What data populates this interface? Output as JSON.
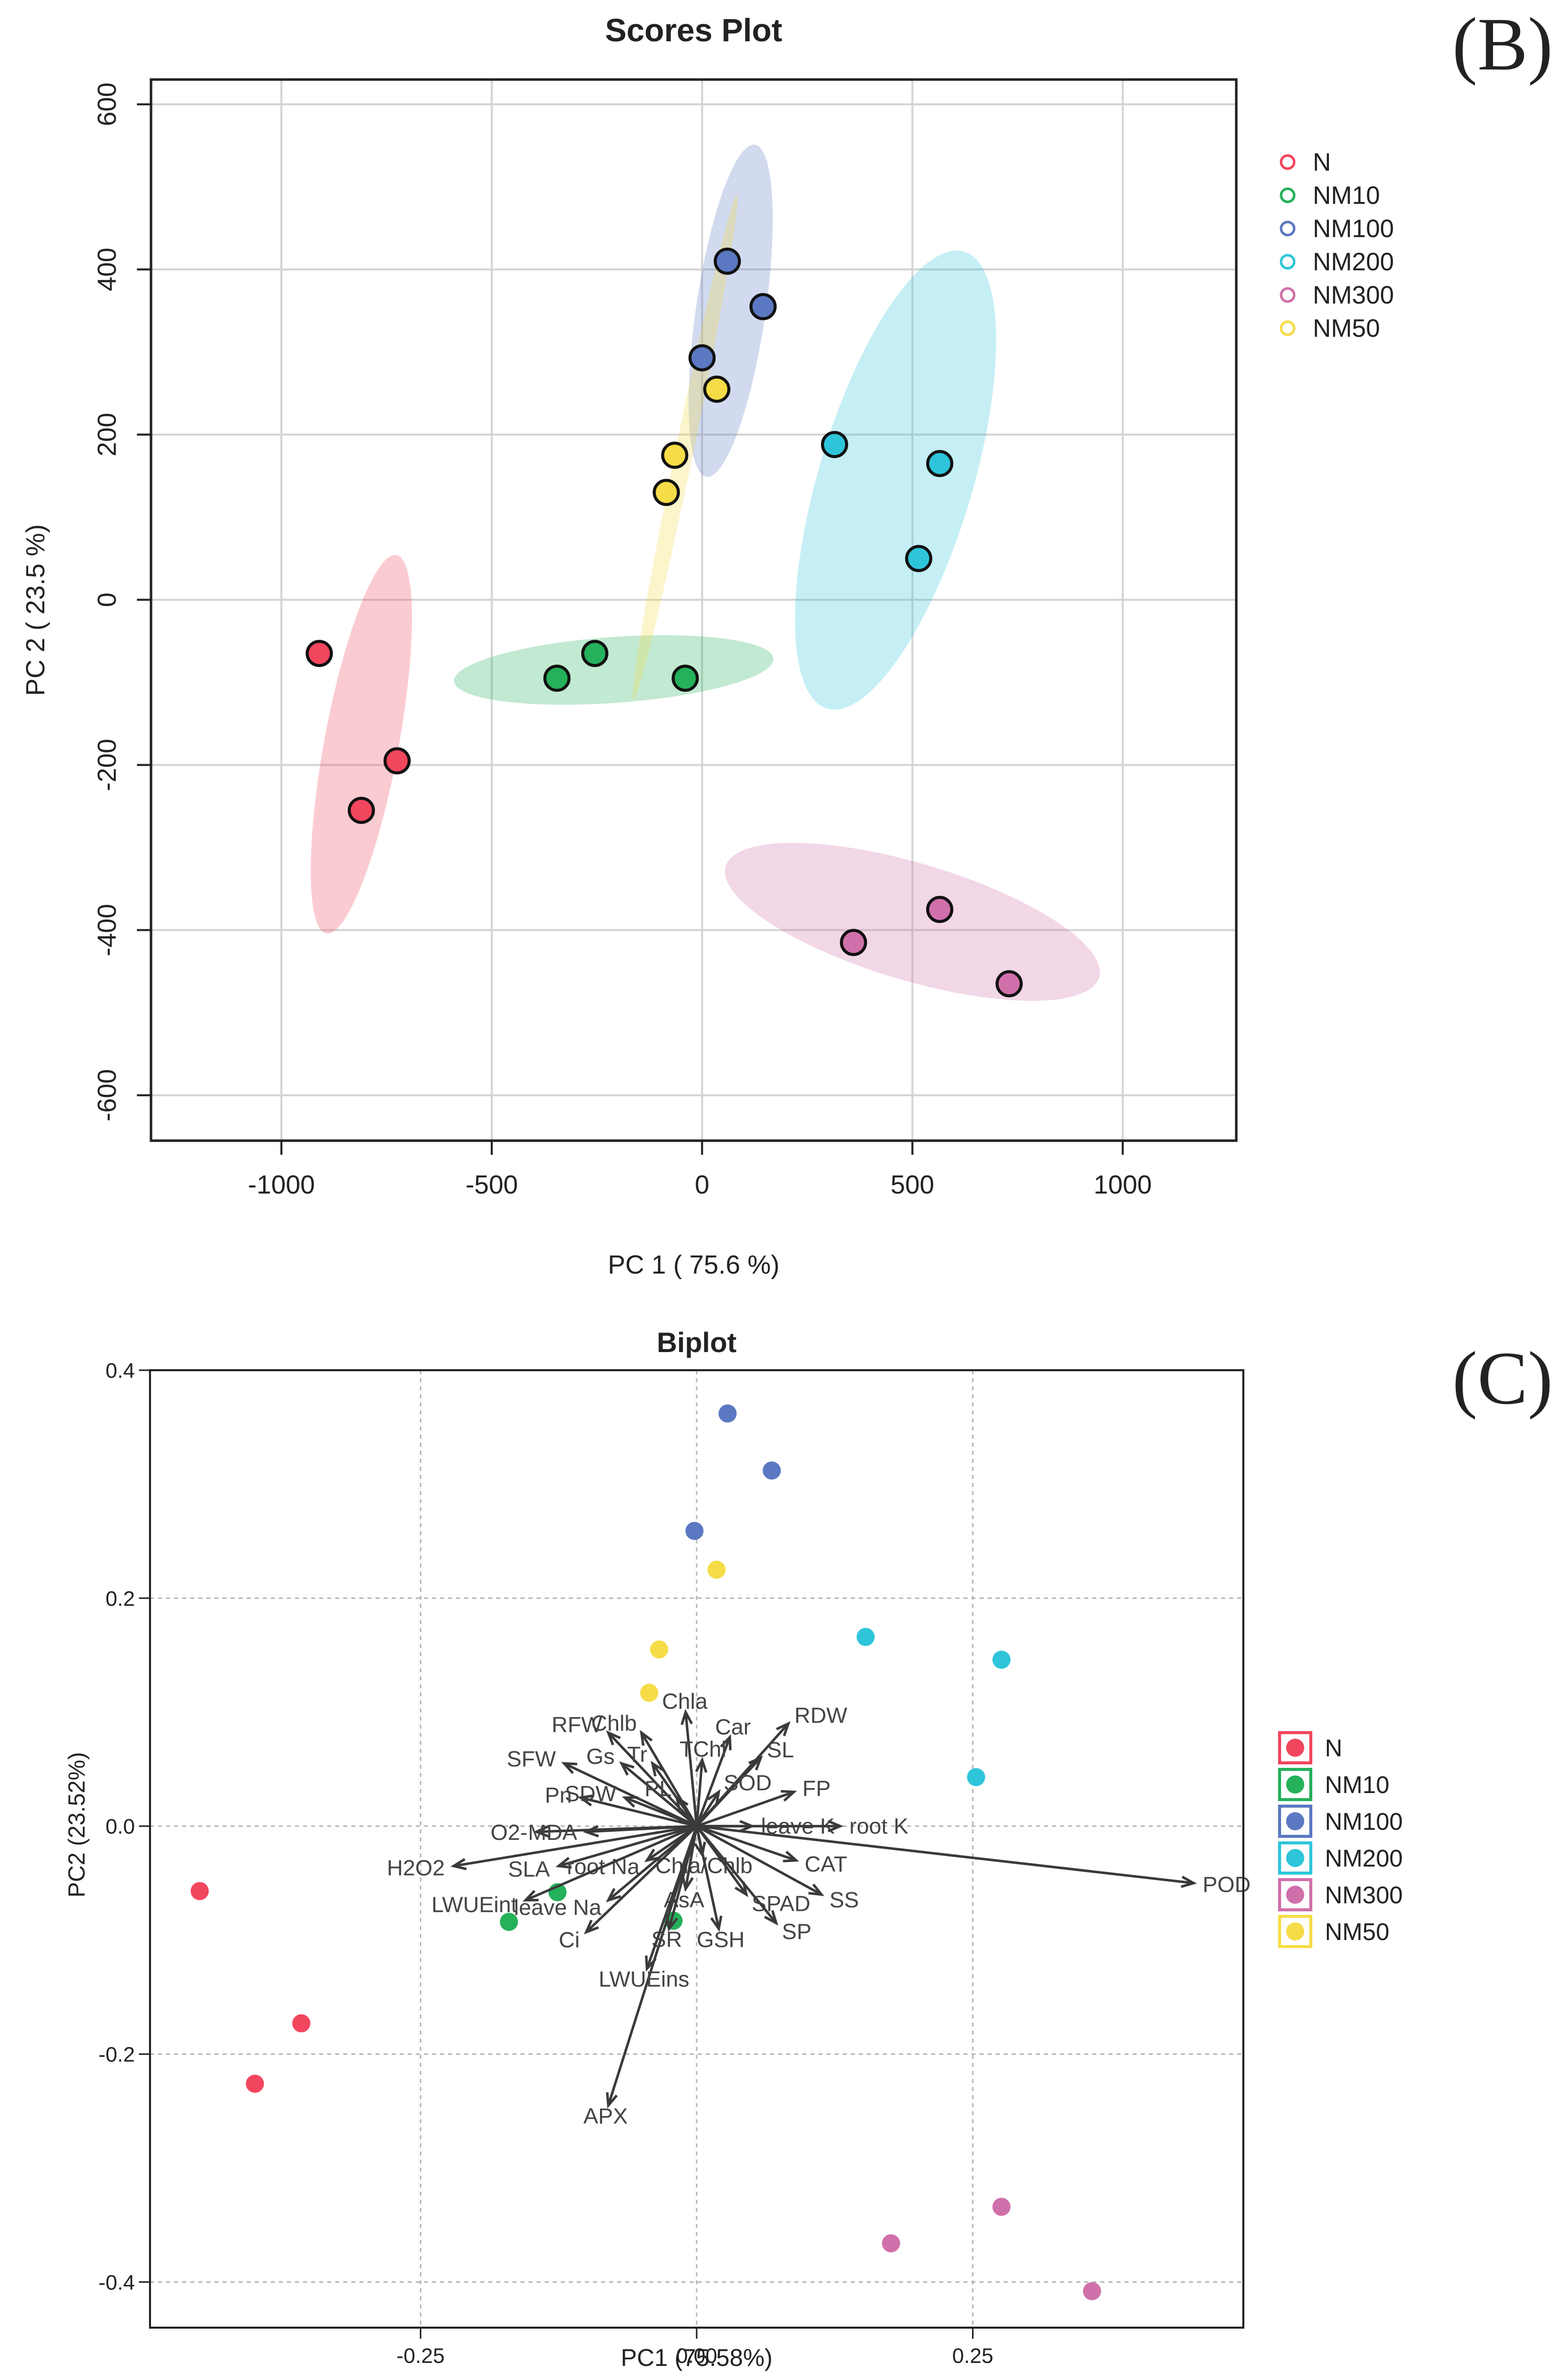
{
  "panel_labels": {
    "top": "(B)",
    "bottom": "(C)"
  },
  "colors": {
    "N": "#f2465e",
    "NM10": "#25b05a",
    "NM100": "#5b79c2",
    "NM200": "#2ec5da",
    "NM300": "#d070aa",
    "NM50": "#f6dc48"
  },
  "chart_data": [
    {
      "type": "scatter",
      "title": "Scores Plot",
      "xlabel": "PC 1 ( 75.6 %)",
      "ylabel": "PC 2 ( 23.5 %)",
      "xlim": [
        -1310,
        1270
      ],
      "ylim": [
        -655,
        630
      ],
      "xticks": [
        -1000,
        -500,
        0,
        500,
        1000
      ],
      "xtick_labels": [
        "-1000",
        "-500",
        "0",
        "500",
        "1000"
      ],
      "yticks": [
        600,
        400,
        200,
        0,
        -200,
        -400,
        -600
      ],
      "ytick_labels": [
        "600",
        "400",
        "200",
        "0",
        "-200",
        "-400",
        "-600"
      ],
      "grid": true,
      "legend": "top-right",
      "legend_entries": [
        "N",
        "NM10",
        "NM100",
        "NM200",
        "NM300",
        "NM50"
      ],
      "series": [
        {
          "name": "N",
          "points": [
            [
              -910,
              -65
            ],
            [
              -725,
              -195
            ],
            [
              -810,
              -255
            ]
          ],
          "ellipse": {
            "cx": -810,
            "cy": -175,
            "rx": 245,
            "ry": 84,
            "angle_deg": 68
          }
        },
        {
          "name": "NM10",
          "points": [
            [
              -345,
              -95
            ],
            [
              -255,
              -65
            ],
            [
              -40,
              -95
            ]
          ],
          "ellipse": {
            "cx": -210,
            "cy": -85,
            "rx": 380,
            "ry": 40,
            "angle_deg": 2
          }
        },
        {
          "name": "NM100",
          "points": [
            [
              60,
              410
            ],
            [
              145,
              355
            ],
            [
              0,
              293
            ]
          ],
          "ellipse": {
            "cx": 68,
            "cy": 350,
            "rx": 210,
            "ry": 80,
            "angle_deg": 72
          }
        },
        {
          "name": "NM200",
          "points": [
            [
              315,
              188
            ],
            [
              565,
              165
            ],
            [
              515,
              50
            ]
          ],
          "ellipse": {
            "cx": 460,
            "cy": 145,
            "rx": 330,
            "ry": 160,
            "angle_deg": 52
          }
        },
        {
          "name": "NM300",
          "points": [
            [
              360,
              -415
            ],
            [
              565,
              -375
            ],
            [
              730,
              -465
            ]
          ],
          "ellipse": {
            "cx": 500,
            "cy": -390,
            "rx": 450,
            "ry": 73,
            "angle_deg": -8
          }
        },
        {
          "name": "NM50",
          "points": [
            [
              35,
              255
            ],
            [
              -65,
              175
            ],
            [
              -85,
              130
            ]
          ],
          "ellipse": {
            "cx": -40,
            "cy": 185,
            "rx": 330,
            "ry": 20,
            "angle_deg": 68
          }
        }
      ]
    },
    {
      "type": "scatter",
      "title": "Biplot",
      "xlabel": "PC1 (75.58%)",
      "ylabel": "PC2 (23.52%)",
      "xlim": [
        -0.495,
        0.495
      ],
      "ylim": [
        -0.44,
        0.4
      ],
      "xticks": [
        -0.25,
        0,
        0.25
      ],
      "xtick_labels": [
        "-0.25",
        "0.00",
        "0.25"
      ],
      "yticks": [
        0.4,
        0.2,
        0,
        -0.2,
        -0.4
      ],
      "ytick_labels": [
        "0.4",
        "0.2",
        "0.0",
        "-0.2",
        "-0.4"
      ],
      "grid": true,
      "legend": "right",
      "legend_entries": [
        "N",
        "NM10",
        "NM100",
        "NM200",
        "NM300",
        "NM50"
      ],
      "series": [
        {
          "name": "N",
          "points": [
            [
              -0.45,
              -0.057
            ],
            [
              -0.358,
              -0.173
            ],
            [
              -0.4,
              -0.226
            ]
          ]
        },
        {
          "name": "NM10",
          "points": [
            [
              -0.17,
              -0.084
            ],
            [
              -0.126,
              -0.058
            ],
            [
              -0.021,
              -0.083
            ]
          ]
        },
        {
          "name": "NM100",
          "points": [
            [
              0.028,
              0.362
            ],
            [
              0.068,
              0.312
            ],
            [
              -0.002,
              0.259
            ]
          ]
        },
        {
          "name": "NM200",
          "points": [
            [
              0.153,
              0.166
            ],
            [
              0.276,
              0.146
            ],
            [
              0.253,
              0.043
            ]
          ]
        },
        {
          "name": "NM300",
          "points": [
            [
              0.176,
              -0.366
            ],
            [
              0.276,
              -0.334
            ],
            [
              0.358,
              -0.408
            ]
          ]
        },
        {
          "name": "NM50",
          "points": [
            [
              0.018,
              0.225
            ],
            [
              -0.034,
              0.155
            ],
            [
              -0.043,
              0.117
            ]
          ]
        }
      ],
      "loadings": [
        {
          "label": "POD",
          "x": 0.45,
          "y": -0.05
        },
        {
          "label": "APX",
          "x": -0.08,
          "y": -0.245
        },
        {
          "label": "Chla",
          "x": -0.01,
          "y": 0.1
        },
        {
          "label": "Car",
          "x": 0.03,
          "y": 0.078
        },
        {
          "label": "RDW",
          "x": 0.083,
          "y": 0.09
        },
        {
          "label": "RFW",
          "x": -0.08,
          "y": 0.082
        },
        {
          "label": "Chlb",
          "x": -0.05,
          "y": 0.082
        },
        {
          "label": "TChl",
          "x": 0.005,
          "y": 0.058
        },
        {
          "label": "SL",
          "x": 0.058,
          "y": 0.06
        },
        {
          "label": "Gs",
          "x": -0.068,
          "y": 0.055
        },
        {
          "label": "Tr",
          "x": -0.04,
          "y": 0.055
        },
        {
          "label": "SFW",
          "x": -0.12,
          "y": 0.055
        },
        {
          "label": "SOD",
          "x": 0.02,
          "y": 0.03
        },
        {
          "label": "FP",
          "x": 0.088,
          "y": 0.03
        },
        {
          "label": "Pn",
          "x": -0.105,
          "y": 0.025
        },
        {
          "label": "SDW",
          "x": -0.065,
          "y": 0.025
        },
        {
          "label": "PL",
          "x": -0.018,
          "y": 0.025
        },
        {
          "label": "leave K",
          "x": 0.05,
          "y": 0.0
        },
        {
          "label": "root K",
          "x": 0.13,
          "y": 0.0
        },
        {
          "label": "O2-",
          "x": -0.145,
          "y": -0.005
        },
        {
          "label": "MDA",
          "x": -0.1,
          "y": -0.005
        },
        {
          "label": "H2O2",
          "x": -0.22,
          "y": -0.035
        },
        {
          "label": "SLA",
          "x": -0.125,
          "y": -0.035
        },
        {
          "label": "root Na",
          "x": -0.045,
          "y": -0.03
        },
        {
          "label": "Chla/Chlb",
          "x": 0.005,
          "y": -0.025
        },
        {
          "label": "CAT",
          "x": 0.09,
          "y": -0.03
        },
        {
          "label": "LWUEint",
          "x": -0.155,
          "y": -0.065
        },
        {
          "label": "leave Na",
          "x": -0.08,
          "y": -0.065
        },
        {
          "label": "AsA",
          "x": -0.01,
          "y": -0.055
        },
        {
          "label": "SPAD",
          "x": 0.045,
          "y": -0.06
        },
        {
          "label": "SS",
          "x": 0.113,
          "y": -0.06
        },
        {
          "label": "Ci",
          "x": -0.1,
          "y": -0.093
        },
        {
          "label": "SR",
          "x": -0.025,
          "y": -0.09
        },
        {
          "label": "GSH",
          "x": 0.02,
          "y": -0.09
        },
        {
          "label": "SP",
          "x": 0.072,
          "y": -0.085
        },
        {
          "label": "LWUEins",
          "x": -0.045,
          "y": -0.125
        }
      ]
    }
  ]
}
